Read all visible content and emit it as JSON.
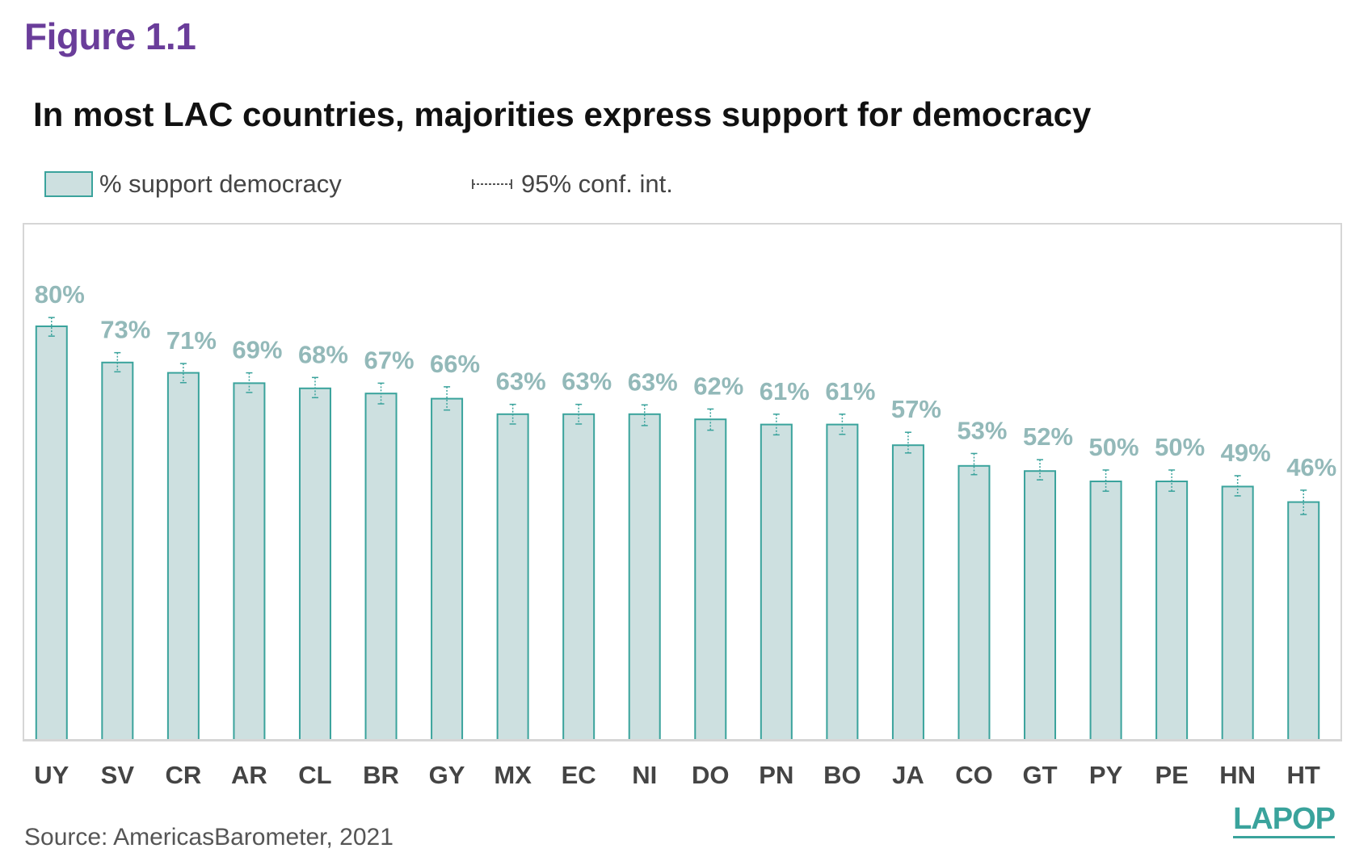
{
  "figure_label": "Figure 1.1",
  "source": "Source: AmericasBarometer, 2021",
  "logo": "LAPOP",
  "colors": {
    "bar_fill": "#cde0e0",
    "bar_stroke": "#3aa39c",
    "value_label": "#93b9b9",
    "category_label": "#444444",
    "figure_label": "#6a3d9a"
  },
  "chart_data": {
    "type": "bar",
    "title": "In most LAC countries, majorities express support for democracy",
    "legend": {
      "bar_label": "% support democracy",
      "ci_label": "95% conf. int.",
      "placement": "top-left"
    },
    "categories": [
      "UY",
      "SV",
      "CR",
      "AR",
      "CL",
      "BR",
      "GY",
      "MX",
      "EC",
      "NI",
      "DO",
      "PN",
      "BO",
      "JA",
      "CO",
      "GT",
      "PY",
      "PE",
      "HN",
      "HT"
    ],
    "series": [
      {
        "name": "% support democracy",
        "values": [
          80,
          73,
          71,
          69,
          68,
          67,
          66,
          63,
          63,
          63,
          62,
          61,
          61,
          57,
          53,
          52,
          50,
          50,
          49,
          46
        ],
        "labels": [
          "80%",
          "73%",
          "71%",
          "69%",
          "68%",
          "67%",
          "66%",
          "63%",
          "63%",
          "63%",
          "62%",
          "61%",
          "61%",
          "57%",
          "53%",
          "52%",
          "50%",
          "50%",
          "49%",
          "46%"
        ],
        "ci": [
          [
            78.1,
            81.7
          ],
          [
            71.2,
            74.9
          ],
          [
            69.1,
            72.8
          ],
          [
            67.2,
            71.0
          ],
          [
            66.2,
            70.1
          ],
          [
            65.0,
            69.0
          ],
          [
            63.8,
            68.3
          ],
          [
            61.1,
            64.9
          ],
          [
            61.1,
            64.9
          ],
          [
            60.8,
            64.8
          ],
          [
            59.9,
            64.0
          ],
          [
            59.0,
            63.0
          ],
          [
            59.1,
            63.0
          ],
          [
            55.5,
            59.5
          ],
          [
            51.3,
            55.4
          ],
          [
            50.3,
            54.2
          ],
          [
            48.1,
            52.2
          ],
          [
            48.1,
            52.2
          ],
          [
            47.2,
            51.1
          ],
          [
            43.6,
            48.3
          ]
        ]
      }
    ],
    "ylim": [
      0,
      83
    ],
    "grid": false,
    "xlabel": "",
    "ylabel": ""
  }
}
